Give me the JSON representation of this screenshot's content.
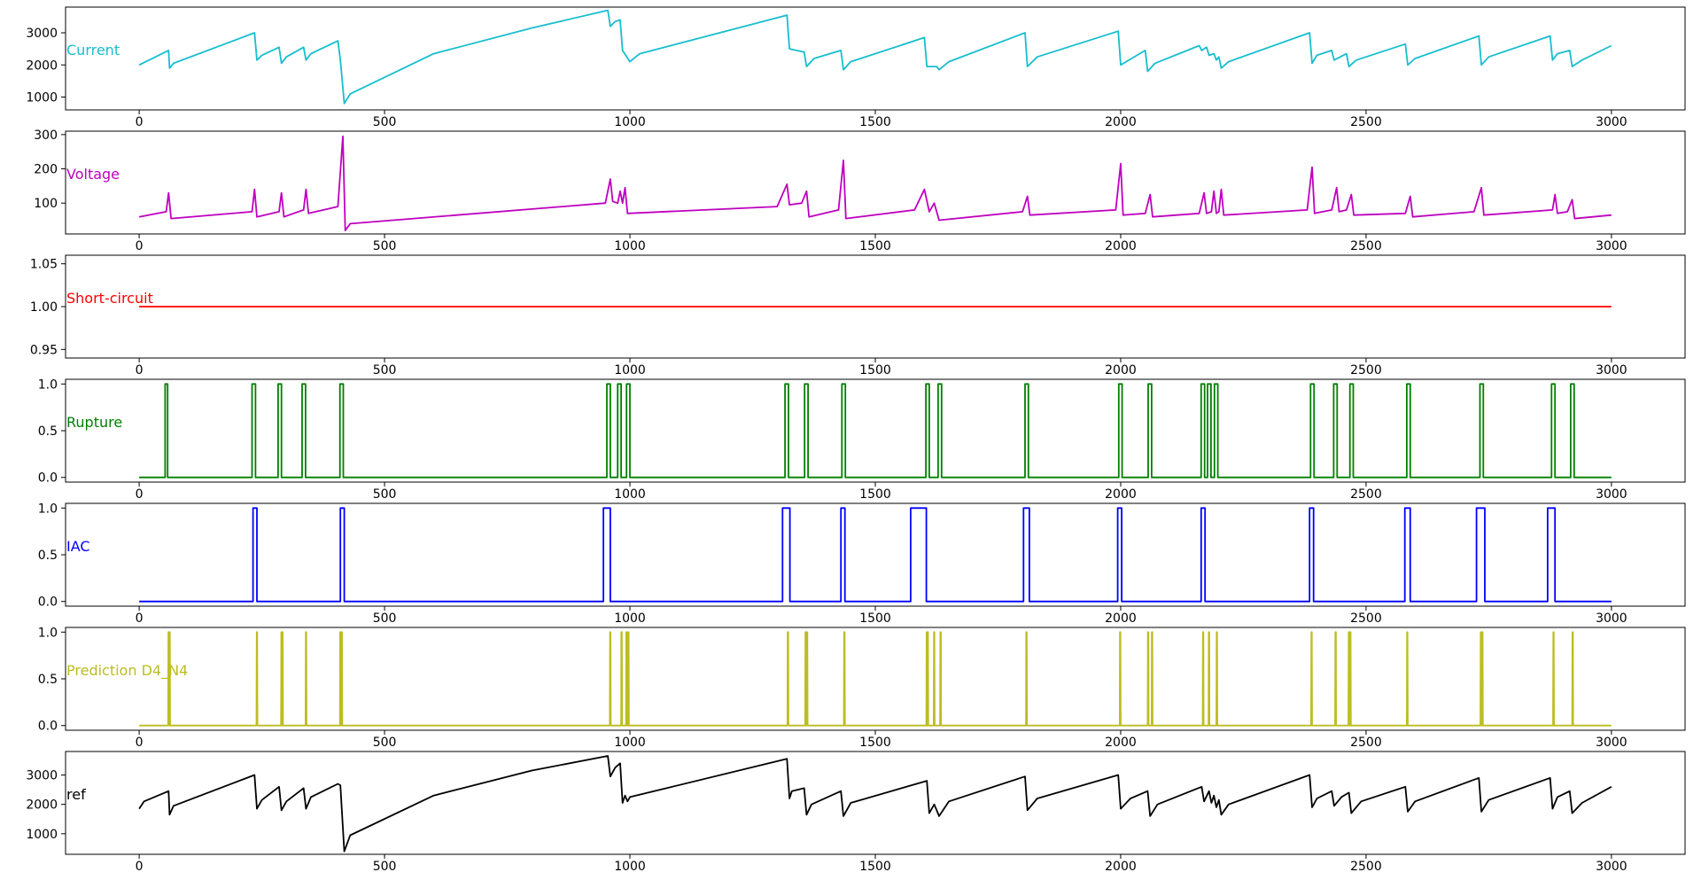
{
  "chart_data": {
    "type": "line",
    "layout": "7 vertically stacked subplots sharing x-axis",
    "grid": false,
    "legend_placement": "in-axes label at left of each subplot",
    "xlim": [
      -150,
      3150
    ],
    "xticks": [
      0,
      500,
      1000,
      1500,
      2000,
      2500,
      3000
    ],
    "subplots": [
      {
        "id": "current",
        "name": "Current",
        "color": "#17becf",
        "ylim": [
          600,
          3800
        ],
        "yticks": [
          1000,
          2000,
          3000
        ],
        "points": [
          [
            0,
            2000
          ],
          [
            60,
            2450
          ],
          [
            62,
            1900
          ],
          [
            70,
            2050
          ],
          [
            235,
            3000
          ],
          [
            240,
            2150
          ],
          [
            250,
            2300
          ],
          [
            285,
            2550
          ],
          [
            290,
            2050
          ],
          [
            300,
            2250
          ],
          [
            335,
            2550
          ],
          [
            340,
            2150
          ],
          [
            350,
            2350
          ],
          [
            405,
            2750
          ],
          [
            410,
            2150
          ],
          [
            418,
            800
          ],
          [
            430,
            1100
          ],
          [
            600,
            2350
          ],
          [
            800,
            3150
          ],
          [
            955,
            3700
          ],
          [
            960,
            3200
          ],
          [
            970,
            3350
          ],
          [
            980,
            3400
          ],
          [
            985,
            2450
          ],
          [
            1000,
            2100
          ],
          [
            1020,
            2350
          ],
          [
            1320,
            3550
          ],
          [
            1325,
            2500
          ],
          [
            1355,
            2400
          ],
          [
            1360,
            1950
          ],
          [
            1375,
            2200
          ],
          [
            1430,
            2450
          ],
          [
            1435,
            1850
          ],
          [
            1450,
            2100
          ],
          [
            1600,
            2850
          ],
          [
            1605,
            1950
          ],
          [
            1625,
            1950
          ],
          [
            1630,
            1850
          ],
          [
            1650,
            2100
          ],
          [
            1805,
            3000
          ],
          [
            1810,
            1950
          ],
          [
            1830,
            2250
          ],
          [
            1995,
            3050
          ],
          [
            2000,
            2000
          ],
          [
            2050,
            2450
          ],
          [
            2055,
            1800
          ],
          [
            2070,
            2050
          ],
          [
            2160,
            2600
          ],
          [
            2165,
            2450
          ],
          [
            2175,
            2550
          ],
          [
            2180,
            2300
          ],
          [
            2190,
            2350
          ],
          [
            2195,
            2150
          ],
          [
            2200,
            2250
          ],
          [
            2205,
            1900
          ],
          [
            2220,
            2100
          ],
          [
            2385,
            3000
          ],
          [
            2390,
            2050
          ],
          [
            2400,
            2300
          ],
          [
            2430,
            2450
          ],
          [
            2435,
            2150
          ],
          [
            2460,
            2350
          ],
          [
            2465,
            1950
          ],
          [
            2480,
            2150
          ],
          [
            2580,
            2650
          ],
          [
            2585,
            2000
          ],
          [
            2600,
            2200
          ],
          [
            2730,
            2900
          ],
          [
            2735,
            2000
          ],
          [
            2750,
            2250
          ],
          [
            2875,
            2900
          ],
          [
            2880,
            2150
          ],
          [
            2890,
            2350
          ],
          [
            2915,
            2450
          ],
          [
            2920,
            1950
          ],
          [
            2940,
            2150
          ],
          [
            3000,
            2600
          ]
        ]
      },
      {
        "id": "voltage",
        "name": "Voltage",
        "color": "#bf00bf",
        "ylim": [
          10,
          310
        ],
        "yticks": [
          100,
          200,
          300
        ],
        "points": [
          [
            0,
            60
          ],
          [
            55,
            75
          ],
          [
            60,
            130
          ],
          [
            65,
            55
          ],
          [
            230,
            75
          ],
          [
            235,
            140
          ],
          [
            240,
            60
          ],
          [
            285,
            75
          ],
          [
            290,
            130
          ],
          [
            295,
            60
          ],
          [
            335,
            80
          ],
          [
            340,
            140
          ],
          [
            345,
            70
          ],
          [
            405,
            90
          ],
          [
            415,
            295
          ],
          [
            420,
            20
          ],
          [
            430,
            40
          ],
          [
            950,
            100
          ],
          [
            960,
            170
          ],
          [
            965,
            105
          ],
          [
            975,
            100
          ],
          [
            980,
            135
          ],
          [
            985,
            100
          ],
          [
            990,
            145
          ],
          [
            995,
            70
          ],
          [
            1300,
            90
          ],
          [
            1320,
            155
          ],
          [
            1325,
            95
          ],
          [
            1350,
            100
          ],
          [
            1360,
            135
          ],
          [
            1365,
            60
          ],
          [
            1425,
            80
          ],
          [
            1435,
            225
          ],
          [
            1440,
            55
          ],
          [
            1580,
            80
          ],
          [
            1600,
            140
          ],
          [
            1610,
            75
          ],
          [
            1620,
            100
          ],
          [
            1630,
            50
          ],
          [
            1800,
            75
          ],
          [
            1810,
            120
          ],
          [
            1815,
            65
          ],
          [
            1990,
            80
          ],
          [
            2000,
            215
          ],
          [
            2005,
            65
          ],
          [
            2050,
            70
          ],
          [
            2060,
            125
          ],
          [
            2065,
            60
          ],
          [
            2160,
            70
          ],
          [
            2170,
            130
          ],
          [
            2175,
            70
          ],
          [
            2185,
            75
          ],
          [
            2190,
            135
          ],
          [
            2195,
            70
          ],
          [
            2200,
            75
          ],
          [
            2205,
            140
          ],
          [
            2210,
            65
          ],
          [
            2380,
            80
          ],
          [
            2390,
            205
          ],
          [
            2395,
            70
          ],
          [
            2430,
            80
          ],
          [
            2440,
            145
          ],
          [
            2445,
            75
          ],
          [
            2460,
            80
          ],
          [
            2470,
            125
          ],
          [
            2475,
            65
          ],
          [
            2580,
            70
          ],
          [
            2590,
            120
          ],
          [
            2595,
            60
          ],
          [
            2720,
            75
          ],
          [
            2735,
            145
          ],
          [
            2740,
            65
          ],
          [
            2880,
            80
          ],
          [
            2885,
            125
          ],
          [
            2890,
            70
          ],
          [
            2910,
            75
          ],
          [
            2920,
            110
          ],
          [
            2925,
            55
          ],
          [
            3000,
            65
          ]
        ]
      },
      {
        "id": "short-circuit",
        "name": "Short-circuit",
        "color": "#ff0000",
        "ylim": [
          0.94,
          1.06
        ],
        "yticks": [
          0.95,
          1.0,
          1.05
        ],
        "points": [
          [
            0,
            1.0
          ],
          [
            3000,
            1.0
          ]
        ]
      },
      {
        "id": "rupture",
        "name": "Rupture",
        "color": "#008000",
        "ylim": [
          -0.05,
          1.05
        ],
        "yticks": [
          0.0,
          0.5,
          1.0
        ],
        "pulses": [
          [
            53,
            58
          ],
          [
            230,
            237
          ],
          [
            283,
            290
          ],
          [
            332,
            339
          ],
          [
            409,
            416
          ],
          [
            953,
            960
          ],
          [
            975,
            982
          ],
          [
            993,
            1000
          ],
          [
            1316,
            1323
          ],
          [
            1356,
            1363
          ],
          [
            1432,
            1439
          ],
          [
            1603,
            1610
          ],
          [
            1628,
            1635
          ],
          [
            1805,
            1812
          ],
          [
            1996,
            2003
          ],
          [
            2056,
            2063
          ],
          [
            2164,
            2171
          ],
          [
            2177,
            2184
          ],
          [
            2191,
            2198
          ],
          [
            2387,
            2394
          ],
          [
            2434,
            2441
          ],
          [
            2467,
            2474
          ],
          [
            2583,
            2590
          ],
          [
            2732,
            2739
          ],
          [
            2878,
            2885
          ],
          [
            2917,
            2924
          ]
        ]
      },
      {
        "id": "iac",
        "name": "IAC",
        "color": "#0000ff",
        "ylim": [
          -0.05,
          1.05
        ],
        "yticks": [
          0.0,
          0.5,
          1.0
        ],
        "pulses": [
          [
            232,
            240
          ],
          [
            410,
            418
          ],
          [
            946,
            960
          ],
          [
            1311,
            1326
          ],
          [
            1430,
            1438
          ],
          [
            1572,
            1604
          ],
          [
            1802,
            1814
          ],
          [
            1994,
            2002
          ],
          [
            2164,
            2172
          ],
          [
            2385,
            2393
          ],
          [
            2579,
            2590
          ],
          [
            2725,
            2742
          ],
          [
            2870,
            2885
          ]
        ]
      },
      {
        "id": "prediction-d4-n4",
        "name": "Prediction D4_N4",
        "color": "#bcbd22",
        "ylim": [
          -0.05,
          1.05
        ],
        "yticks": [
          0.0,
          0.5,
          1.0
        ],
        "spikes": [
          60,
          62,
          240,
          290,
          292,
          340,
          410,
          413,
          960,
          983,
          993,
          997,
          1322,
          1358,
          1361,
          1437,
          1605,
          1607,
          1620,
          1633,
          1808,
          1999,
          2056,
          2064,
          2168,
          2180,
          2196,
          2389,
          2438,
          2465,
          2468,
          2584,
          2734,
          2737,
          2882,
          2921
        ]
      },
      {
        "id": "ref",
        "name": "ref",
        "color": "#000000",
        "ylim": [
          300,
          3800
        ],
        "yticks": [
          1000,
          2000,
          3000
        ],
        "points": [
          [
            0,
            1850
          ],
          [
            10,
            2100
          ],
          [
            60,
            2450
          ],
          [
            62,
            1650
          ],
          [
            70,
            1950
          ],
          [
            235,
            3000
          ],
          [
            240,
            1850
          ],
          [
            250,
            2150
          ],
          [
            285,
            2600
          ],
          [
            290,
            1800
          ],
          [
            300,
            2100
          ],
          [
            335,
            2550
          ],
          [
            340,
            1850
          ],
          [
            350,
            2250
          ],
          [
            405,
            2700
          ],
          [
            410,
            2650
          ],
          [
            418,
            400
          ],
          [
            430,
            950
          ],
          [
            600,
            2300
          ],
          [
            800,
            3150
          ],
          [
            955,
            3650
          ],
          [
            960,
            2950
          ],
          [
            970,
            3250
          ],
          [
            980,
            3400
          ],
          [
            985,
            2050
          ],
          [
            990,
            2300
          ],
          [
            995,
            2100
          ],
          [
            1000,
            2250
          ],
          [
            1320,
            3550
          ],
          [
            1325,
            2200
          ],
          [
            1330,
            2450
          ],
          [
            1355,
            2550
          ],
          [
            1360,
            1650
          ],
          [
            1370,
            2000
          ],
          [
            1430,
            2450
          ],
          [
            1435,
            1600
          ],
          [
            1450,
            2050
          ],
          [
            1605,
            2800
          ],
          [
            1610,
            1700
          ],
          [
            1620,
            2000
          ],
          [
            1630,
            1600
          ],
          [
            1650,
            2100
          ],
          [
            1805,
            2950
          ],
          [
            1810,
            1800
          ],
          [
            1830,
            2200
          ],
          [
            1995,
            3000
          ],
          [
            2000,
            1850
          ],
          [
            2020,
            2200
          ],
          [
            2055,
            2450
          ],
          [
            2060,
            1600
          ],
          [
            2075,
            2000
          ],
          [
            2165,
            2600
          ],
          [
            2170,
            2100
          ],
          [
            2180,
            2450
          ],
          [
            2185,
            2050
          ],
          [
            2190,
            2300
          ],
          [
            2195,
            1900
          ],
          [
            2200,
            2150
          ],
          [
            2205,
            1650
          ],
          [
            2220,
            2000
          ],
          [
            2385,
            3000
          ],
          [
            2390,
            1900
          ],
          [
            2400,
            2200
          ],
          [
            2430,
            2450
          ],
          [
            2435,
            1950
          ],
          [
            2450,
            2250
          ],
          [
            2465,
            2400
          ],
          [
            2470,
            1700
          ],
          [
            2490,
            2100
          ],
          [
            2580,
            2600
          ],
          [
            2585,
            1750
          ],
          [
            2600,
            2100
          ],
          [
            2730,
            2900
          ],
          [
            2735,
            1750
          ],
          [
            2750,
            2150
          ],
          [
            2875,
            2900
          ],
          [
            2880,
            1850
          ],
          [
            2890,
            2250
          ],
          [
            2915,
            2450
          ],
          [
            2920,
            1700
          ],
          [
            2940,
            2050
          ],
          [
            3000,
            2600
          ]
        ]
      }
    ]
  }
}
